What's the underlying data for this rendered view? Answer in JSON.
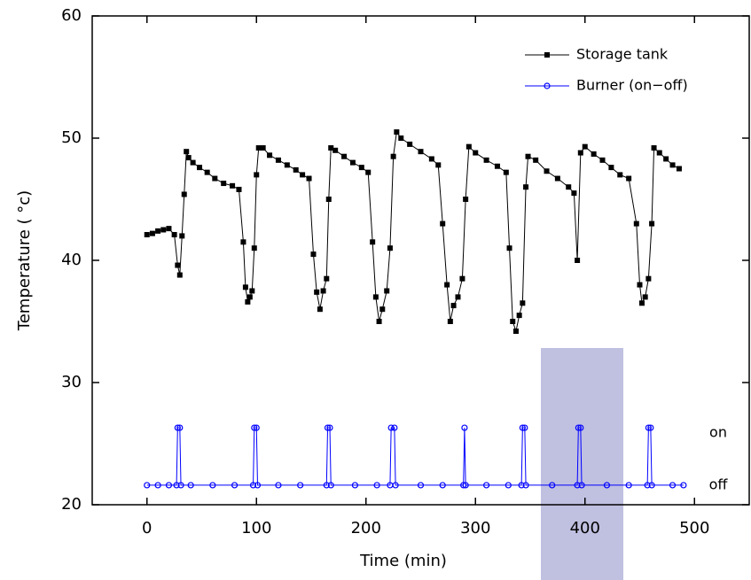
{
  "chart_data": {
    "type": "scatter",
    "xlabel": "Time (min)",
    "ylabel": "Temperature ( °c)",
    "xlim": [
      -50,
      550
    ],
    "ylim": [
      20,
      60
    ],
    "xticks": [
      0,
      100,
      200,
      300,
      400,
      500
    ],
    "yticks": [
      20,
      30,
      40,
      50,
      60
    ],
    "legend": "upper right",
    "annotations": [
      "on",
      "off"
    ],
    "series": [
      {
        "name": "Storage tank",
        "color": "#000000",
        "marker": "square",
        "x": [
          0,
          5,
          10,
          15,
          20,
          25,
          28,
          30,
          32,
          34,
          36,
          38,
          42,
          48,
          55,
          62,
          70,
          78,
          84,
          88,
          90,
          92,
          94,
          96,
          98,
          100,
          102,
          106,
          112,
          120,
          128,
          136,
          142,
          148,
          152,
          155,
          158,
          161,
          164,
          166,
          168,
          172,
          180,
          188,
          196,
          202,
          206,
          209,
          212,
          215,
          219,
          222,
          225,
          228,
          232,
          240,
          250,
          260,
          266,
          270,
          274,
          277,
          280,
          284,
          288,
          291,
          294,
          300,
          310,
          320,
          328,
          331,
          334,
          337,
          340,
          343,
          346,
          348,
          355,
          365,
          375,
          385,
          390,
          393,
          396,
          400,
          408,
          416,
          424,
          432,
          440,
          447,
          450,
          452,
          455,
          458,
          461,
          463,
          468,
          474,
          480,
          486
        ],
        "values": [
          42.1,
          42.2,
          42.4,
          42.5,
          42.6,
          42.1,
          39.6,
          38.8,
          42.0,
          45.4,
          48.9,
          48.4,
          48.0,
          47.6,
          47.2,
          46.7,
          46.3,
          46.1,
          45.8,
          41.5,
          37.8,
          36.6,
          37.0,
          37.5,
          41.0,
          47.0,
          49.2,
          49.2,
          48.6,
          48.2,
          47.8,
          47.4,
          47.0,
          46.7,
          40.5,
          37.4,
          36.0,
          37.5,
          38.5,
          45.0,
          49.2,
          49.0,
          48.5,
          48.0,
          47.6,
          47.2,
          41.5,
          37.0,
          35.0,
          36.0,
          37.5,
          41.0,
          48.5,
          50.5,
          50.0,
          49.5,
          48.9,
          48.3,
          47.8,
          43.0,
          38.0,
          35.0,
          36.3,
          37.0,
          38.5,
          45.0,
          49.3,
          48.8,
          48.2,
          47.7,
          47.2,
          41.0,
          35.0,
          34.2,
          35.5,
          36.5,
          46.0,
          48.5,
          48.2,
          47.3,
          46.7,
          46.0,
          45.5,
          40.0,
          48.8,
          49.3,
          48.7,
          48.2,
          47.6,
          47.0,
          46.7,
          43.0,
          38.0,
          36.5,
          37.0,
          38.5,
          43.0,
          49.2,
          48.8,
          48.3,
          47.8,
          47.5
        ]
      },
      {
        "name": "Burner (on−off)",
        "color": "#0000ff",
        "marker": "circle",
        "x": [
          0,
          10,
          20,
          27,
          28,
          30,
          31,
          40,
          60,
          80,
          97,
          98,
          100,
          101,
          120,
          140,
          164,
          165,
          167,
          168,
          190,
          210,
          222,
          223,
          226,
          227,
          250,
          270,
          289,
          290,
          291,
          310,
          330,
          342,
          343,
          345,
          346,
          370,
          393,
          394,
          396,
          397,
          420,
          440,
          457,
          458,
          460,
          461,
          480,
          490
        ],
        "values": [
          21.6,
          21.6,
          21.6,
          21.6,
          26.3,
          26.3,
          21.6,
          21.6,
          21.6,
          21.6,
          21.6,
          26.3,
          26.3,
          21.6,
          21.6,
          21.6,
          21.6,
          26.3,
          26.3,
          21.6,
          21.6,
          21.6,
          21.6,
          26.3,
          26.3,
          21.6,
          21.6,
          21.6,
          21.6,
          26.3,
          21.6,
          21.6,
          21.6,
          21.6,
          26.3,
          26.3,
          21.6,
          21.6,
          21.6,
          26.3,
          26.3,
          21.6,
          21.6,
          21.6,
          21.6,
          26.3,
          26.3,
          21.6,
          21.6,
          21.6
        ]
      }
    ]
  }
}
